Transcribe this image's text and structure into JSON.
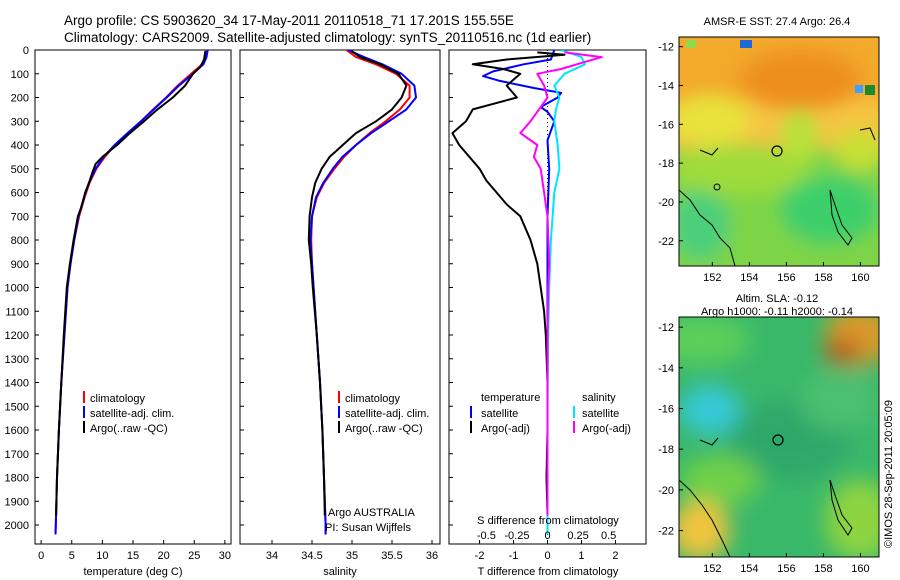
{
  "header": {
    "line1": "Argo profile: CS 5903620_34 17-May-2011 20110518_71 17.201S 155.55E",
    "line2": "Climatology: CARS2009. Satellite-adjusted climatology: synTS_20110516.nc (1d earlier)"
  },
  "colors": {
    "climatology": "#ff0000",
    "satellite": "#0000ff",
    "argo": "#000000",
    "cyan": "#00e5ff",
    "magenta": "#ff00ff"
  },
  "depth_ticks": [
    "0",
    "100",
    "200",
    "300",
    "400",
    "500",
    "600",
    "700",
    "800",
    "900",
    "1000",
    "1100",
    "1200",
    "1300",
    "1400",
    "1500",
    "1600",
    "1700",
    "1800",
    "1900",
    "2000"
  ],
  "chart_data": [
    {
      "type": "line",
      "name": "temperature-panel",
      "xlabel": "temperature (deg C)",
      "ylabel": "",
      "xlim": [
        -1,
        31
      ],
      "ylim": [
        2080,
        0
      ],
      "xticks": [
        0,
        5,
        10,
        15,
        20,
        25,
        30
      ],
      "legend": [
        "climatology",
        "satellite-adj. clim.",
        "Argo(..raw -QC)"
      ],
      "series": [
        {
          "name": "climatology",
          "color": "#ff0000",
          "points": [
            [
              27,
              0
            ],
            [
              26.8,
              30
            ],
            [
              26.3,
              60
            ],
            [
              24.5,
              100
            ],
            [
              22.3,
              150
            ],
            [
              20.4,
              200
            ],
            [
              18.3,
              250
            ],
            [
              16.3,
              300
            ],
            [
              14.2,
              350
            ],
            [
              12.1,
              400
            ],
            [
              10.4,
              450
            ],
            [
              9.0,
              500
            ],
            [
              7.9,
              560
            ],
            [
              7.1,
              620
            ],
            [
              6.2,
              700
            ],
            [
              5.4,
              800
            ],
            [
              4.8,
              900
            ],
            [
              4.3,
              1000
            ],
            [
              3.8,
              1200
            ],
            [
              3.3,
              1400
            ],
            [
              2.9,
              1600
            ],
            [
              2.6,
              1800
            ],
            [
              2.4,
              2000
            ],
            [
              2.35,
              2040
            ]
          ]
        },
        {
          "name": "satellite-adj. clim.",
          "color": "#0000ff",
          "points": [
            [
              27.2,
              0
            ],
            [
              27.0,
              30
            ],
            [
              26.5,
              60
            ],
            [
              24.8,
              100
            ],
            [
              22.5,
              150
            ],
            [
              20.5,
              200
            ],
            [
              18.4,
              250
            ],
            [
              16.3,
              300
            ],
            [
              14.1,
              350
            ],
            [
              12.0,
              400
            ],
            [
              10.2,
              450
            ],
            [
              8.9,
              500
            ],
            [
              7.8,
              560
            ],
            [
              7.0,
              620
            ],
            [
              6.1,
              700
            ],
            [
              5.4,
              800
            ],
            [
              4.8,
              900
            ],
            [
              4.3,
              1000
            ],
            [
              3.8,
              1200
            ],
            [
              3.3,
              1400
            ],
            [
              2.9,
              1600
            ],
            [
              2.6,
              1800
            ],
            [
              2.4,
              2000
            ],
            [
              2.35,
              2040
            ]
          ]
        },
        {
          "name": "Argo(..raw -QC)",
          "color": "#000000",
          "points": [
            [
              26.8,
              5
            ],
            [
              26.6,
              40
            ],
            [
              26.0,
              70
            ],
            [
              24.8,
              100
            ],
            [
              23.5,
              150
            ],
            [
              21.5,
              200
            ],
            [
              19.0,
              250
            ],
            [
              16.8,
              300
            ],
            [
              14.5,
              350
            ],
            [
              12.4,
              400
            ],
            [
              10.0,
              450
            ],
            [
              8.9,
              480
            ],
            [
              8.3,
              520
            ],
            [
              7.8,
              560
            ],
            [
              7.2,
              600
            ],
            [
              6.6,
              660
            ],
            [
              6.0,
              700
            ],
            [
              5.3,
              800
            ],
            [
              4.7,
              900
            ],
            [
              4.2,
              1000
            ],
            [
              3.7,
              1200
            ],
            [
              3.3,
              1400
            ],
            [
              2.9,
              1600
            ],
            [
              2.6,
              1800
            ],
            [
              2.45,
              1960
            ]
          ]
        }
      ]
    },
    {
      "type": "line",
      "name": "salinity-panel",
      "xlabel": "salinity",
      "ylabel": "",
      "xlim": [
        33.6,
        36.1
      ],
      "ylim": [
        2080,
        0
      ],
      "xticks": [
        34,
        34.5,
        35,
        35.5,
        36
      ],
      "legend": [
        "climatology",
        "satellite-adj. clim.",
        "Argo(..raw -QC)"
      ],
      "series": [
        {
          "name": "climatology",
          "color": "#ff0000",
          "points": [
            [
              34.93,
              0
            ],
            [
              35.05,
              30
            ],
            [
              35.3,
              60
            ],
            [
              35.55,
              100
            ],
            [
              35.72,
              150
            ],
            [
              35.72,
              200
            ],
            [
              35.6,
              250
            ],
            [
              35.42,
              300
            ],
            [
              35.22,
              350
            ],
            [
              35.05,
              400
            ],
            [
              34.9,
              450
            ],
            [
              34.78,
              500
            ],
            [
              34.65,
              560
            ],
            [
              34.56,
              620
            ],
            [
              34.5,
              700
            ],
            [
              34.49,
              800
            ],
            [
              34.5,
              900
            ],
            [
              34.52,
              1000
            ],
            [
              34.56,
              1200
            ],
            [
              34.6,
              1400
            ],
            [
              34.63,
              1600
            ],
            [
              34.65,
              1800
            ],
            [
              34.67,
              2000
            ],
            [
              34.67,
              2040
            ]
          ]
        },
        {
          "name": "satellite-adj. clim.",
          "color": "#0000ff",
          "points": [
            [
              34.95,
              0
            ],
            [
              35.15,
              30
            ],
            [
              35.38,
              60
            ],
            [
              35.62,
              100
            ],
            [
              35.78,
              150
            ],
            [
              35.8,
              200
            ],
            [
              35.68,
              250
            ],
            [
              35.46,
              300
            ],
            [
              35.24,
              350
            ],
            [
              35.05,
              400
            ],
            [
              34.88,
              450
            ],
            [
              34.76,
              500
            ],
            [
              34.64,
              560
            ],
            [
              34.55,
              620
            ],
            [
              34.5,
              700
            ],
            [
              34.48,
              800
            ],
            [
              34.5,
              900
            ],
            [
              34.52,
              1000
            ],
            [
              34.56,
              1200
            ],
            [
              34.6,
              1400
            ],
            [
              34.63,
              1600
            ],
            [
              34.65,
              1800
            ],
            [
              34.67,
              2000
            ],
            [
              34.67,
              2040
            ]
          ]
        },
        {
          "name": "Argo(..raw -QC)",
          "color": "#000000",
          "points": [
            [
              35.0,
              5
            ],
            [
              35.1,
              30
            ],
            [
              35.35,
              60
            ],
            [
              35.58,
              100
            ],
            [
              35.68,
              150
            ],
            [
              35.62,
              200
            ],
            [
              35.5,
              250
            ],
            [
              35.3,
              300
            ],
            [
              35.05,
              350
            ],
            [
              34.95,
              380
            ],
            [
              34.82,
              420
            ],
            [
              34.72,
              450
            ],
            [
              34.62,
              500
            ],
            [
              34.54,
              560
            ],
            [
              34.5,
              620
            ],
            [
              34.47,
              700
            ],
            [
              34.46,
              800
            ],
            [
              34.49,
              900
            ],
            [
              34.51,
              1000
            ],
            [
              34.56,
              1200
            ],
            [
              34.6,
              1400
            ],
            [
              34.63,
              1600
            ],
            [
              34.65,
              1800
            ],
            [
              34.66,
              1960
            ]
          ]
        }
      ]
    },
    {
      "type": "line",
      "name": "difference-panel",
      "xlabel": "T difference from climatology",
      "xlabel2": "S difference from climatology",
      "xlim": [
        -2.9,
        2.9
      ],
      "ylim": [
        2080,
        0
      ],
      "xticks": [
        "-2",
        "-1",
        "0",
        "1",
        "2"
      ],
      "xticks2": [
        "-0.5",
        "-0.25",
        "0",
        "0.25",
        "0.5"
      ],
      "legend_temperature": [
        "temperature",
        "satellite",
        "Argo(-adj)"
      ],
      "legend_salinity": [
        "salinity",
        "satellite",
        "Argo(-adj)"
      ],
      "series": [
        {
          "name": "temperature satellite",
          "color": "#0000ff",
          "points": [
            [
              0.2,
              0
            ],
            [
              0.1,
              40
            ],
            [
              -0.7,
              60
            ],
            [
              -1.6,
              90
            ],
            [
              -1.9,
              110
            ],
            [
              -1.4,
              130
            ],
            [
              -0.4,
              160
            ],
            [
              0.4,
              180
            ],
            [
              0.3,
              200
            ],
            [
              -0.2,
              240
            ],
            [
              0.0,
              260
            ],
            [
              0.2,
              300
            ],
            [
              0.1,
              340
            ],
            [
              0.0,
              380
            ],
            [
              0.05,
              500
            ],
            [
              0.0,
              700
            ],
            [
              0.0,
              1000
            ],
            [
              0.0,
              1500
            ],
            [
              0.0,
              2000
            ],
            [
              0.0,
              2040
            ]
          ]
        },
        {
          "name": "temperature Argo(-adj)",
          "color": "#000000",
          "points": [
            [
              -0.3,
              10
            ],
            [
              0.5,
              20
            ],
            [
              -1.2,
              40
            ],
            [
              -2.2,
              60
            ],
            [
              -1.3,
              80
            ],
            [
              -0.8,
              100
            ],
            [
              -1.2,
              150
            ],
            [
              -0.9,
              200
            ],
            [
              -2.2,
              250
            ],
            [
              -2.4,
              300
            ],
            [
              -2.8,
              350
            ],
            [
              -2.6,
              400
            ],
            [
              -2.3,
              450
            ],
            [
              -2.0,
              500
            ],
            [
              -1.8,
              550
            ],
            [
              -1.5,
              600
            ],
            [
              -1.2,
              650
            ],
            [
              -0.8,
              700
            ],
            [
              -0.5,
              800
            ],
            [
              -0.3,
              900
            ],
            [
              -0.2,
              1000
            ],
            [
              -0.1,
              1100
            ],
            [
              -0.05,
              1200
            ],
            [
              0.0,
              1400
            ],
            [
              0.0,
              1600
            ],
            [
              -0.03,
              1800
            ],
            [
              0.0,
              1960
            ]
          ]
        },
        {
          "name": "salinity satellite",
          "color": "#00e5ff",
          "points": [
            [
              0.4,
              0
            ],
            [
              1.0,
              30
            ],
            [
              1.1,
              60
            ],
            [
              0.5,
              100
            ],
            [
              0.2,
              150
            ],
            [
              0.35,
              200
            ],
            [
              0.25,
              250
            ],
            [
              0.2,
              300
            ],
            [
              0.3,
              400
            ],
            [
              0.35,
              500
            ],
            [
              0.2,
              600
            ],
            [
              0.15,
              700
            ],
            [
              0.1,
              800
            ],
            [
              0.05,
              1000
            ],
            [
              0.02,
              1200
            ],
            [
              0.0,
              1500
            ],
            [
              0.0,
              2000
            ],
            [
              0.0,
              2040
            ]
          ]
        },
        {
          "name": "salinity Argo(-adj)",
          "color": "#ff00ff",
          "points": [
            [
              0.5,
              10
            ],
            [
              1.6,
              30
            ],
            [
              1.1,
              50
            ],
            [
              0.4,
              80
            ],
            [
              -0.3,
              100
            ],
            [
              -0.1,
              150
            ],
            [
              0.0,
              200
            ],
            [
              -0.5,
              300
            ],
            [
              -0.8,
              350
            ],
            [
              -0.3,
              400
            ],
            [
              -0.4,
              450
            ],
            [
              -0.2,
              500
            ],
            [
              -0.1,
              600
            ],
            [
              0.0,
              700
            ],
            [
              0.05,
              900
            ],
            [
              0.02,
              1000
            ],
            [
              0.0,
              1200
            ],
            [
              0.0,
              1600
            ],
            [
              0.0,
              1960
            ]
          ]
        }
      ]
    },
    {
      "type": "heatmap",
      "name": "sst-map",
      "title": "AMSR-E SST: 27.4  Argo: 26.4",
      "xticks": [
        "152",
        "154",
        "156",
        "158",
        "160"
      ],
      "yticks": [
        "-12",
        "-14",
        "-16",
        "-18",
        "-20",
        "-22"
      ],
      "xlim": [
        150.2,
        161.0
      ],
      "ylim": [
        -23.3,
        -11.5
      ],
      "profile_location": [
        155.55,
        -17.2
      ]
    },
    {
      "type": "heatmap",
      "name": "sla-map",
      "title_line1": "Altim. SLA: -0.12",
      "title_line2": "Argo h1000: -0.11  h2000: -0.14",
      "xticks": [
        "152",
        "154",
        "156",
        "158",
        "160"
      ],
      "yticks": [
        "-12",
        "-14",
        "-16",
        "-18",
        "-20",
        "-22"
      ],
      "xlim": [
        150.2,
        161.0
      ],
      "ylim": [
        -23.3,
        -11.5
      ],
      "profile_location": [
        155.55,
        -17.2
      ]
    }
  ],
  "labels": {
    "argo_country": "Argo AUSTRALIA",
    "pi": "PI: Susan Wijffels",
    "credit": "©IMOS 28-Sep-2011 20:05:09"
  }
}
